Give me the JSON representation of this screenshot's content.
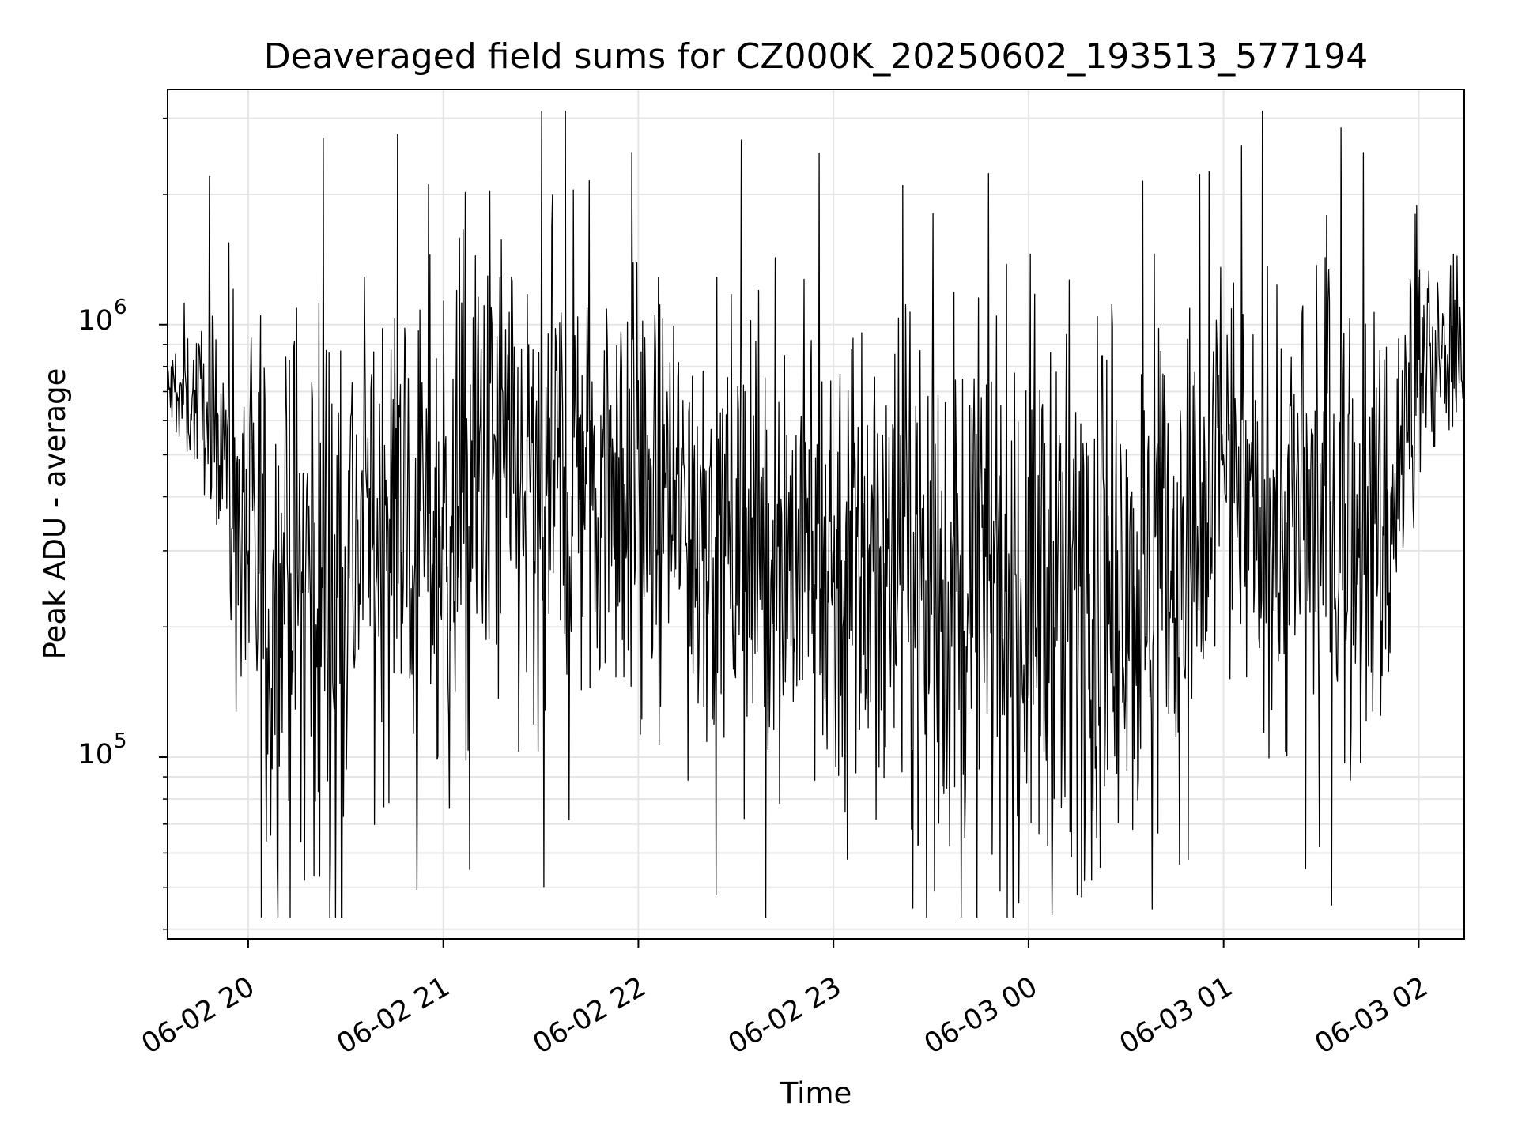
{
  "chart_data": {
    "type": "line",
    "title": "Deaveraged field sums for CZ000K_20250602_193513_577194",
    "xlabel": "Time",
    "ylabel": "Peak ADU - average",
    "yscale": "log",
    "ylim": [
      38000,
      3500000
    ],
    "xlim": [
      "2025-06-02 19:35:13",
      "2025-06-03 02:14:00"
    ],
    "x_tick_labels": [
      "06-02 20",
      "06-02 21",
      "06-02 22",
      "06-02 23",
      "06-03 00",
      "06-03 01",
      "06-03 02"
    ],
    "y_tick_labels": [
      {
        "base": "10",
        "exp": "5"
      },
      {
        "base": "10",
        "exp": "6"
      }
    ],
    "grid": true,
    "line_color": "#000000",
    "series": [
      {
        "x_start": "2025-06-02 19:35:13",
        "x_end": "2025-06-03 02:14:00",
        "points": 1800,
        "envelope": [
          {
            "time": "2025-06-02 19:35",
            "median": 700000,
            "spread": 0.1
          },
          {
            "time": "2025-06-02 19:52",
            "median": 640000,
            "spread": 0.2
          },
          {
            "time": "2025-06-02 19:55",
            "median": 420000,
            "spread": 0.45
          },
          {
            "time": "2025-06-02 20:05",
            "median": 240000,
            "spread": 0.55
          },
          {
            "time": "2025-06-02 20:25",
            "median": 280000,
            "spread": 0.55
          },
          {
            "time": "2025-06-02 20:45",
            "median": 370000,
            "spread": 0.45
          },
          {
            "time": "2025-06-02 21:00",
            "median": 330000,
            "spread": 0.5
          },
          {
            "time": "2025-06-02 21:15",
            "median": 480000,
            "spread": 0.55
          },
          {
            "time": "2025-06-02 21:30",
            "median": 360000,
            "spread": 0.5
          },
          {
            "time": "2025-06-02 21:45",
            "median": 500000,
            "spread": 0.5
          },
          {
            "time": "2025-06-02 22:00",
            "median": 420000,
            "spread": 0.45
          },
          {
            "time": "2025-06-02 22:30",
            "median": 320000,
            "spread": 0.45
          },
          {
            "time": "2025-06-02 23:00",
            "median": 290000,
            "spread": 0.5
          },
          {
            "time": "2025-06-02 23:30",
            "median": 260000,
            "spread": 0.55
          },
          {
            "time": "2025-06-03 00:00",
            "median": 240000,
            "spread": 0.6
          },
          {
            "time": "2025-06-03 00:30",
            "median": 240000,
            "spread": 0.55
          },
          {
            "time": "2025-06-03 00:55",
            "median": 300000,
            "spread": 0.5
          },
          {
            "time": "2025-06-03 01:00",
            "median": 560000,
            "spread": 0.35
          },
          {
            "time": "2025-06-03 01:10",
            "median": 330000,
            "spread": 0.45
          },
          {
            "time": "2025-06-03 01:30",
            "median": 350000,
            "spread": 0.5
          },
          {
            "time": "2025-06-03 01:50",
            "median": 330000,
            "spread": 0.45
          },
          {
            "time": "2025-06-03 02:00",
            "median": 750000,
            "spread": 0.25
          },
          {
            "time": "2025-06-03 02:14",
            "median": 1000000,
            "spread": 0.15
          }
        ],
        "peaks": [
          {
            "time": "2025-06-02 19:48",
            "value": 2200000
          },
          {
            "time": "2025-06-02 20:23",
            "value": 2700000
          },
          {
            "time": "2025-06-02 20:46",
            "value": 2750000
          },
          {
            "time": "2025-06-02 21:40",
            "value": 2050000
          },
          {
            "time": "2025-06-02 21:58",
            "value": 2500000
          },
          {
            "time": "2025-06-02 22:20",
            "value": 780000
          },
          {
            "time": "2025-06-02 23:06",
            "value": 930000
          },
          {
            "time": "2025-06-03 00:40",
            "value": 980000
          },
          {
            "time": "2025-06-03 01:36",
            "value": 2850000
          },
          {
            "time": "2025-06-03 01:43",
            "value": 2500000
          },
          {
            "time": "2025-06-03 01:59",
            "value": 1800000
          }
        ],
        "troughs": [
          {
            "time": "2025-06-02 20:07",
            "value": 66000
          },
          {
            "time": "2025-06-02 20:22",
            "value": 53000
          },
          {
            "time": "2025-06-02 21:08",
            "value": 55000
          },
          {
            "time": "2025-06-02 21:31",
            "value": 50000
          },
          {
            "time": "2025-06-02 22:24",
            "value": 48000
          },
          {
            "time": "2025-06-02 23:31",
            "value": 49000
          },
          {
            "time": "2025-06-02 23:57",
            "value": 46000
          },
          {
            "time": "2025-06-03 00:15",
            "value": 48000
          },
          {
            "time": "2025-06-03 00:49",
            "value": 58000
          }
        ]
      }
    ]
  }
}
